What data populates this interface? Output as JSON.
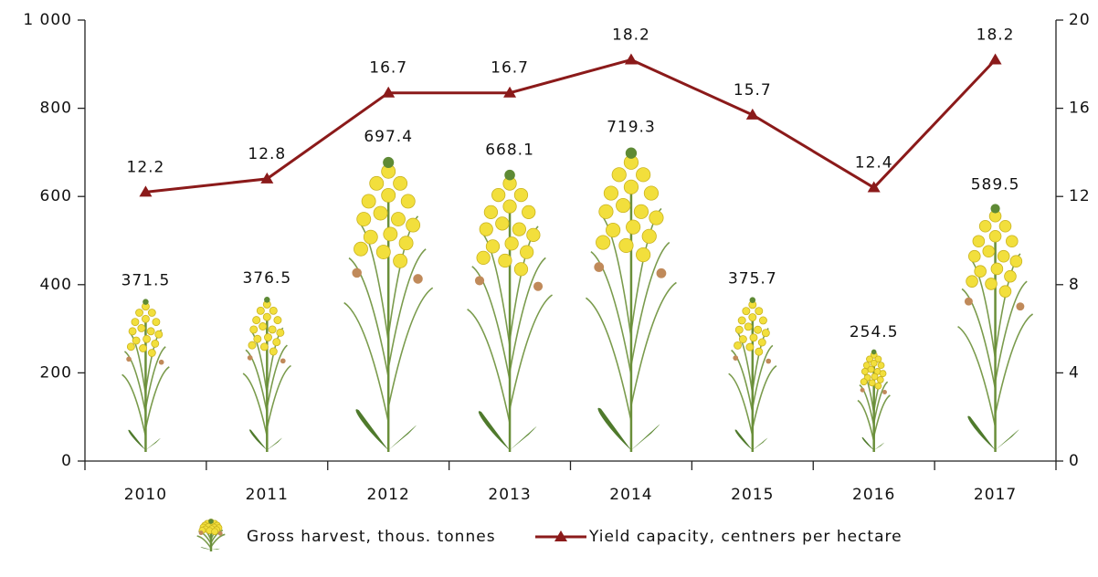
{
  "chart_data": {
    "type": "bar",
    "categories": [
      "2010",
      "2011",
      "2012",
      "2013",
      "2014",
      "2015",
      "2016",
      "2017"
    ],
    "series": [
      {
        "name": "Gross harvest, thous. tonnes",
        "color": "#f2df3c",
        "values": [
          371.5,
          376.5,
          697.4,
          668.1,
          719.3,
          375.7,
          254.5,
          589.5
        ]
      },
      {
        "name": "Yield capacity, centners per hectare",
        "color": "#8b1a1a",
        "type": "line",
        "axis": "y2",
        "values": [
          12.2,
          12.8,
          16.7,
          16.7,
          18.2,
          15.7,
          12.4,
          18.2
        ]
      }
    ],
    "ylim": [
      0,
      1000
    ],
    "yticks": [
      0,
      200,
      400,
      600,
      800,
      {
        "value": 1000,
        "label": "1 000"
      }
    ],
    "y2lim": [
      0,
      20
    ],
    "y2ticks": [
      0,
      4,
      8,
      12,
      16,
      20
    ],
    "legend": "bottom"
  }
}
